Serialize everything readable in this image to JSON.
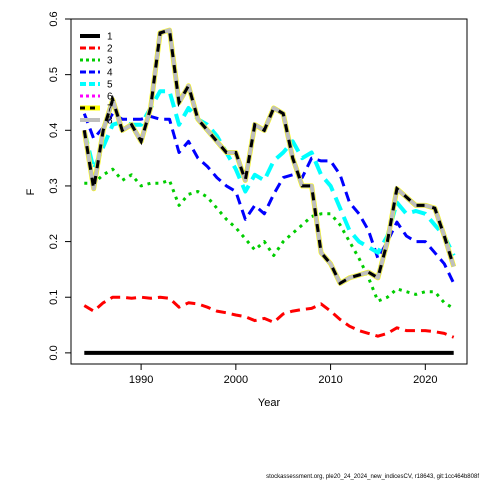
{
  "chart_data": {
    "type": "line",
    "xlabel": "Year",
    "ylabel": "F",
    "xlim": [
      1982.6,
      2024.4
    ],
    "ylim": [
      -0.02,
      0.6
    ],
    "x_ticks": [
      1990,
      2000,
      2010,
      2020
    ],
    "y_ticks": [
      0.0,
      0.1,
      0.2,
      0.3,
      0.4,
      0.5,
      0.6
    ],
    "y_tick_labels": [
      "0.0",
      "0.1",
      "0.2",
      "0.3",
      "0.4",
      "0.5",
      "0.6"
    ],
    "legend_position": "top-left",
    "x": [
      1984,
      1985,
      1986,
      1987,
      1988,
      1989,
      1990,
      1991,
      1992,
      1993,
      1994,
      1995,
      1996,
      1997,
      1998,
      1999,
      2000,
      2001,
      2002,
      2003,
      2004,
      2005,
      2006,
      2007,
      2008,
      2009,
      2010,
      2011,
      2012,
      2013,
      2014,
      2015,
      2016,
      2017,
      2018,
      2019,
      2020,
      2021,
      2022,
      2023
    ],
    "series": [
      {
        "name": "1",
        "color": "#000000",
        "dash": "none",
        "width": 4,
        "values": [
          0.0,
          0.0,
          0.0,
          0.0,
          0.0,
          0.0,
          0.0,
          0.0,
          0.0,
          0.0,
          0.0,
          0.0,
          0.0,
          0.0,
          0.0,
          0.0,
          0.0,
          0.0,
          0.0,
          0.0,
          0.0,
          0.0,
          0.0,
          0.0,
          0.0,
          0.0,
          0.0,
          0.0,
          0.0,
          0.0,
          0.0,
          0.0,
          0.0,
          0.0,
          0.0,
          0.0,
          0.0,
          0.0,
          0.0,
          0.0
        ]
      },
      {
        "name": "2",
        "color": "#ff0000",
        "dash": "10,6",
        "width": 3,
        "values": [
          0.085,
          0.075,
          0.09,
          0.1,
          0.1,
          0.098,
          0.1,
          0.098,
          0.1,
          0.098,
          0.082,
          0.09,
          0.088,
          0.082,
          0.075,
          0.072,
          0.068,
          0.065,
          0.058,
          0.062,
          0.055,
          0.07,
          0.075,
          0.078,
          0.08,
          0.088,
          0.075,
          0.06,
          0.048,
          0.04,
          0.035,
          0.03,
          0.035,
          0.045,
          0.04,
          0.04,
          0.04,
          0.038,
          0.035,
          0.028
        ]
      },
      {
        "name": "3",
        "color": "#00cd00",
        "dash": "3,5",
        "width": 3,
        "values": [
          0.305,
          0.305,
          0.32,
          0.33,
          0.31,
          0.32,
          0.3,
          0.305,
          0.305,
          0.31,
          0.265,
          0.285,
          0.29,
          0.28,
          0.26,
          0.24,
          0.225,
          0.205,
          0.185,
          0.2,
          0.175,
          0.2,
          0.215,
          0.23,
          0.245,
          0.25,
          0.25,
          0.23,
          0.2,
          0.17,
          0.135,
          0.093,
          0.1,
          0.115,
          0.11,
          0.105,
          0.11,
          0.11,
          0.09,
          0.08
        ]
      },
      {
        "name": "4",
        "color": "#0000ff",
        "dash": "10,6",
        "width": 3,
        "values": [
          0.43,
          0.385,
          0.405,
          0.43,
          0.42,
          0.42,
          0.42,
          0.425,
          0.42,
          0.42,
          0.36,
          0.38,
          0.35,
          0.335,
          0.315,
          0.3,
          0.29,
          0.24,
          0.265,
          0.25,
          0.285,
          0.315,
          0.32,
          0.315,
          0.35,
          0.345,
          0.345,
          0.32,
          0.27,
          0.25,
          0.22,
          0.17,
          0.2,
          0.235,
          0.21,
          0.2,
          0.2,
          0.18,
          0.16,
          0.125
        ]
      },
      {
        "name": "5",
        "color": "#00ffff",
        "dash": "14,7",
        "width": 4,
        "values": [
          0.4,
          0.33,
          0.37,
          0.41,
          0.415,
          0.41,
          0.41,
          0.44,
          0.47,
          0.47,
          0.41,
          0.44,
          0.42,
          0.41,
          0.39,
          0.36,
          0.33,
          0.29,
          0.32,
          0.31,
          0.345,
          0.36,
          0.38,
          0.35,
          0.36,
          0.32,
          0.3,
          0.26,
          0.22,
          0.2,
          0.19,
          0.18,
          0.21,
          0.27,
          0.25,
          0.255,
          0.25,
          0.23,
          0.21,
          0.175
        ]
      },
      {
        "name": "6",
        "color": "#ff00ff",
        "dash": "3,5",
        "width": 3,
        "values": [
          0.4,
          0.295,
          0.4,
          0.455,
          0.4,
          0.41,
          0.38,
          0.44,
          0.575,
          0.58,
          0.45,
          0.48,
          0.42,
          0.4,
          0.38,
          0.36,
          0.36,
          0.31,
          0.41,
          0.4,
          0.44,
          0.43,
          0.35,
          0.3,
          0.3,
          0.18,
          0.16,
          0.125,
          0.135,
          0.14,
          0.145,
          0.135,
          0.2,
          0.295,
          0.28,
          0.265,
          0.265,
          0.26,
          0.21,
          0.155
        ]
      },
      {
        "name": "7",
        "color": "#ffff00",
        "dash": "none",
        "width": 5,
        "values": [
          0.4,
          0.295,
          0.4,
          0.455,
          0.4,
          0.41,
          0.38,
          0.44,
          0.575,
          0.58,
          0.45,
          0.48,
          0.42,
          0.4,
          0.38,
          0.36,
          0.36,
          0.31,
          0.41,
          0.4,
          0.44,
          0.43,
          0.35,
          0.3,
          0.3,
          0.18,
          0.16,
          0.125,
          0.135,
          0.14,
          0.145,
          0.135,
          0.2,
          0.295,
          0.28,
          0.265,
          0.265,
          0.26,
          0.21,
          0.155
        ]
      },
      {
        "name": "8",
        "color": "#bebebe",
        "dash": "none",
        "width": 4,
        "values": [
          0.4,
          0.295,
          0.4,
          0.455,
          0.4,
          0.41,
          0.38,
          0.44,
          0.575,
          0.58,
          0.45,
          0.48,
          0.42,
          0.4,
          0.38,
          0.36,
          0.36,
          0.31,
          0.41,
          0.4,
          0.44,
          0.43,
          0.35,
          0.3,
          0.3,
          0.18,
          0.16,
          0.125,
          0.135,
          0.14,
          0.145,
          0.135,
          0.2,
          0.295,
          0.28,
          0.265,
          0.265,
          0.26,
          0.21,
          0.155
        ]
      }
    ],
    "overlay": {
      "color": "#000000",
      "dash": "8,8",
      "width": 3,
      "source_series": "7"
    },
    "footer": "stockassessment.org, ple20_24_2024_new_indicesCV, r18643, git:1cc464b808f"
  }
}
